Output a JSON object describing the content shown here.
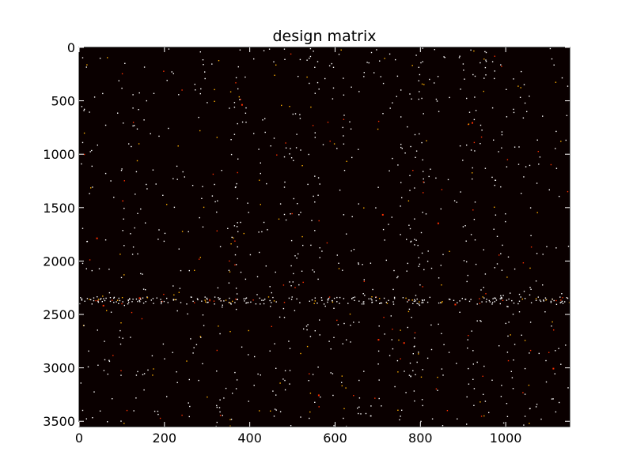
{
  "chart_data": {
    "type": "heatmap",
    "title": "design matrix",
    "xlabel": "",
    "ylabel": "",
    "xlim": [
      0,
      1150
    ],
    "ylim": [
      3550,
      0
    ],
    "x_ticks": [
      0,
      200,
      400,
      600,
      800,
      1000
    ],
    "y_ticks": [
      0,
      500,
      1000,
      1500,
      2000,
      2500,
      3000,
      3500
    ],
    "x_tick_labels": [
      "0",
      "200",
      "400",
      "600",
      "800",
      "1000"
    ],
    "y_tick_labels": [
      "0",
      "500",
      "1000",
      "1500",
      "2000",
      "2500",
      "3000",
      "3500"
    ],
    "colormap": "hot",
    "background_color": "#0a0000",
    "grid": false,
    "legend": "none",
    "nonzero_density": 0.0035,
    "dense_rows": [
      2330,
      2400
    ],
    "hotspot_points": [
      [
        380,
        530
      ],
      [
        40,
        1780
      ],
      [
        710,
        1560
      ],
      [
        840,
        1640
      ],
      [
        880,
        2400
      ],
      [
        55,
        2410
      ],
      [
        700,
        2730
      ],
      [
        760,
        2760
      ],
      [
        560,
        3250
      ],
      [
        1110,
        3000
      ],
      [
        140,
        2340
      ],
      [
        920,
        700
      ]
    ]
  },
  "colors": {
    "matrix_background": "#0a0000",
    "value_low": "#ff3000",
    "value_mid": "#ffb000",
    "value_high": "#ffffff"
  }
}
